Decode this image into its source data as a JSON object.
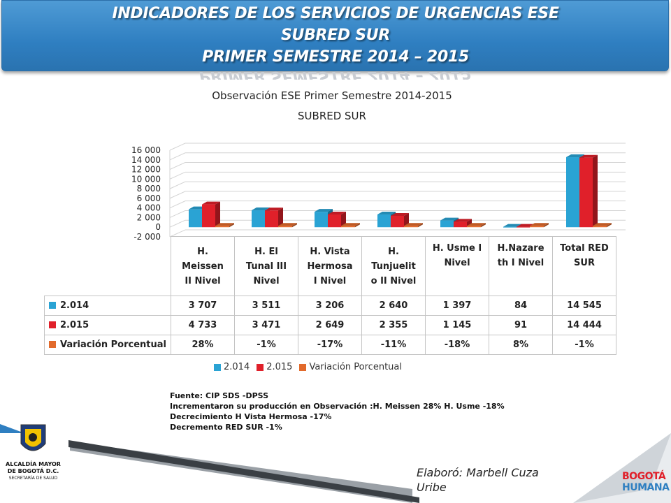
{
  "header": {
    "title_line1": "INDICADORES DE LOS SERVICIOS DE URGENCIAS ESE",
    "title_line2": "SUBRED  SUR",
    "title_line3": "PRIMER SEMESTRE 2014 – 2015"
  },
  "chart_data": {
    "type": "bar",
    "title": "Observación ESE Primer Semestre 2014-2015",
    "subtitle": "SUBRED SUR",
    "categories": [
      [
        "H.",
        "Meissen",
        "II Nivel"
      ],
      [
        "H. El",
        "Tunal III",
        "Nivel"
      ],
      [
        "H. Vista",
        "Hermosa",
        "I Nivel"
      ],
      [
        "H.",
        "Tunjuelit",
        "o II Nivel"
      ],
      [
        "H. Usme I",
        "Nivel"
      ],
      [
        "H.Nazare",
        "th I Nivel"
      ],
      [
        "Total RED",
        "SUR"
      ]
    ],
    "series": [
      {
        "name": "2.014",
        "color": "#2aa3d4",
        "values": [
          3707,
          3511,
          3206,
          2640,
          1397,
          84,
          14545
        ],
        "labels": [
          "3 707",
          "3 511",
          "3 206",
          "2 640",
          "1 397",
          "84",
          "14 545"
        ]
      },
      {
        "name": "2.015",
        "color": "#e0202a",
        "values": [
          4733,
          3471,
          2649,
          2355,
          1145,
          91,
          14444
        ],
        "labels": [
          "4 733",
          "3 471",
          "2 649",
          "2 355",
          "1 145",
          "91",
          "14 444"
        ]
      },
      {
        "name": "Variación Porcentual",
        "color": "#e26a2c",
        "values": [
          0.28,
          -0.01,
          -0.17,
          -0.11,
          -0.18,
          0.08,
          -0.01
        ],
        "labels": [
          "28%",
          "-1%",
          "-17%",
          "-11%",
          "-18%",
          "8%",
          "-1%"
        ]
      }
    ],
    "yticks": [
      "-2 000",
      "0",
      "2 000",
      "4 000",
      "6 000",
      "8 000",
      "10 000",
      "12 000",
      "14 000",
      "16 000"
    ],
    "ylim": [
      -2000,
      16000
    ],
    "legend_position": "bottom"
  },
  "notes": {
    "line1": "Fuente: CIP SDS -DPSS",
    "line2": "Incrementaron  su  producción en Observación :H. Meissen 28% H. Usme -18%",
    "line3": "Decrecimiento H Vista Hermosa -17%",
    "line4": "Decremento RED SUR -1%"
  },
  "credit": {
    "line1": "Elaboró: Marbell Cuza",
    "line2": "Uribe"
  },
  "logos": {
    "left_line1": "ALCALDÍA MAYOR",
    "left_line2": "DE BOGOTÁ D.C.",
    "left_line3": "SECRETARÍA DE SALUD",
    "right_line1": "BOGOTÁ",
    "right_line2": "HUMANA"
  },
  "colors": {
    "banner": "#2f7fc1",
    "blue": "#2aa3d4",
    "red": "#e0202a",
    "orange": "#e26a2c"
  }
}
